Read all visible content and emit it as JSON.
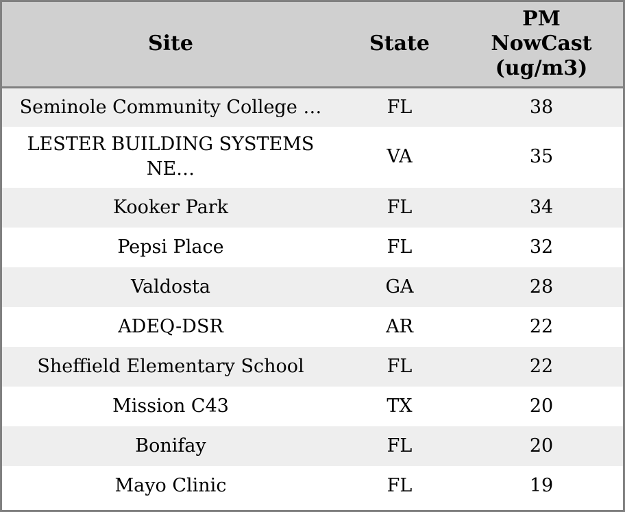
{
  "chart_data": {
    "type": "table",
    "columns": [
      "Site",
      "State",
      "PM NowCast (ug/m3)"
    ],
    "rows": [
      [
        "Seminole Community College …",
        "FL",
        38
      ],
      [
        "LESTER BUILDING SYSTEMS NE…",
        "VA",
        35
      ],
      [
        "Kooker Park",
        "FL",
        34
      ],
      [
        "Pepsi Place",
        "FL",
        32
      ],
      [
        "Valdosta",
        "GA",
        28
      ],
      [
        "ADEQ-DSR",
        "AR",
        22
      ],
      [
        "Sheffield Elementary School",
        "FL",
        22
      ],
      [
        "Mission C43",
        "TX",
        20
      ],
      [
        "Bonifay",
        "FL",
        20
      ],
      [
        "Mayo Clinic",
        "FL",
        19
      ]
    ],
    "layout": {
      "grid": "off",
      "row_striping": true,
      "header_position": "top"
    }
  },
  "table": {
    "headers": [
      {
        "label": "Site"
      },
      {
        "label": "State"
      },
      {
        "label": "PM NowCast (ug/m3)"
      }
    ]
  },
  "colors": {
    "border": "#808080",
    "header_bg": "#d0d0d0",
    "row_alt_bg": "#eeeeee",
    "row_bg": "#ffffff",
    "text": "#000000"
  }
}
